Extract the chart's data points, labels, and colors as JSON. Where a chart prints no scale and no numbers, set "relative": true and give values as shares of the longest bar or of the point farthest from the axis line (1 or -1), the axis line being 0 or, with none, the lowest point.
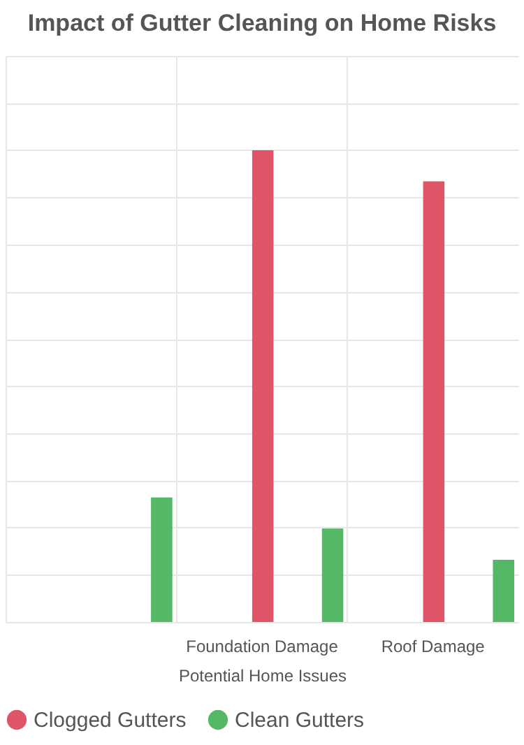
{
  "chart_data": {
    "type": "bar",
    "title": "Impact of Gutter Cleaning on Home Risks",
    "xlabel": "Potential Home Issues",
    "categories": [
      null,
      "Foundation Damage",
      "Roof Damage"
    ],
    "series": [
      {
        "name": "Clogged Gutters",
        "color": "#e05468",
        "values": [
          null,
          1,
          0.934
        ]
      },
      {
        "name": "Clean Gutters",
        "color": "#55b867",
        "values": [
          0.264,
          0.198,
          0.132
        ]
      }
    ],
    "relative": true,
    "grid": true,
    "legend": "bottom"
  }
}
